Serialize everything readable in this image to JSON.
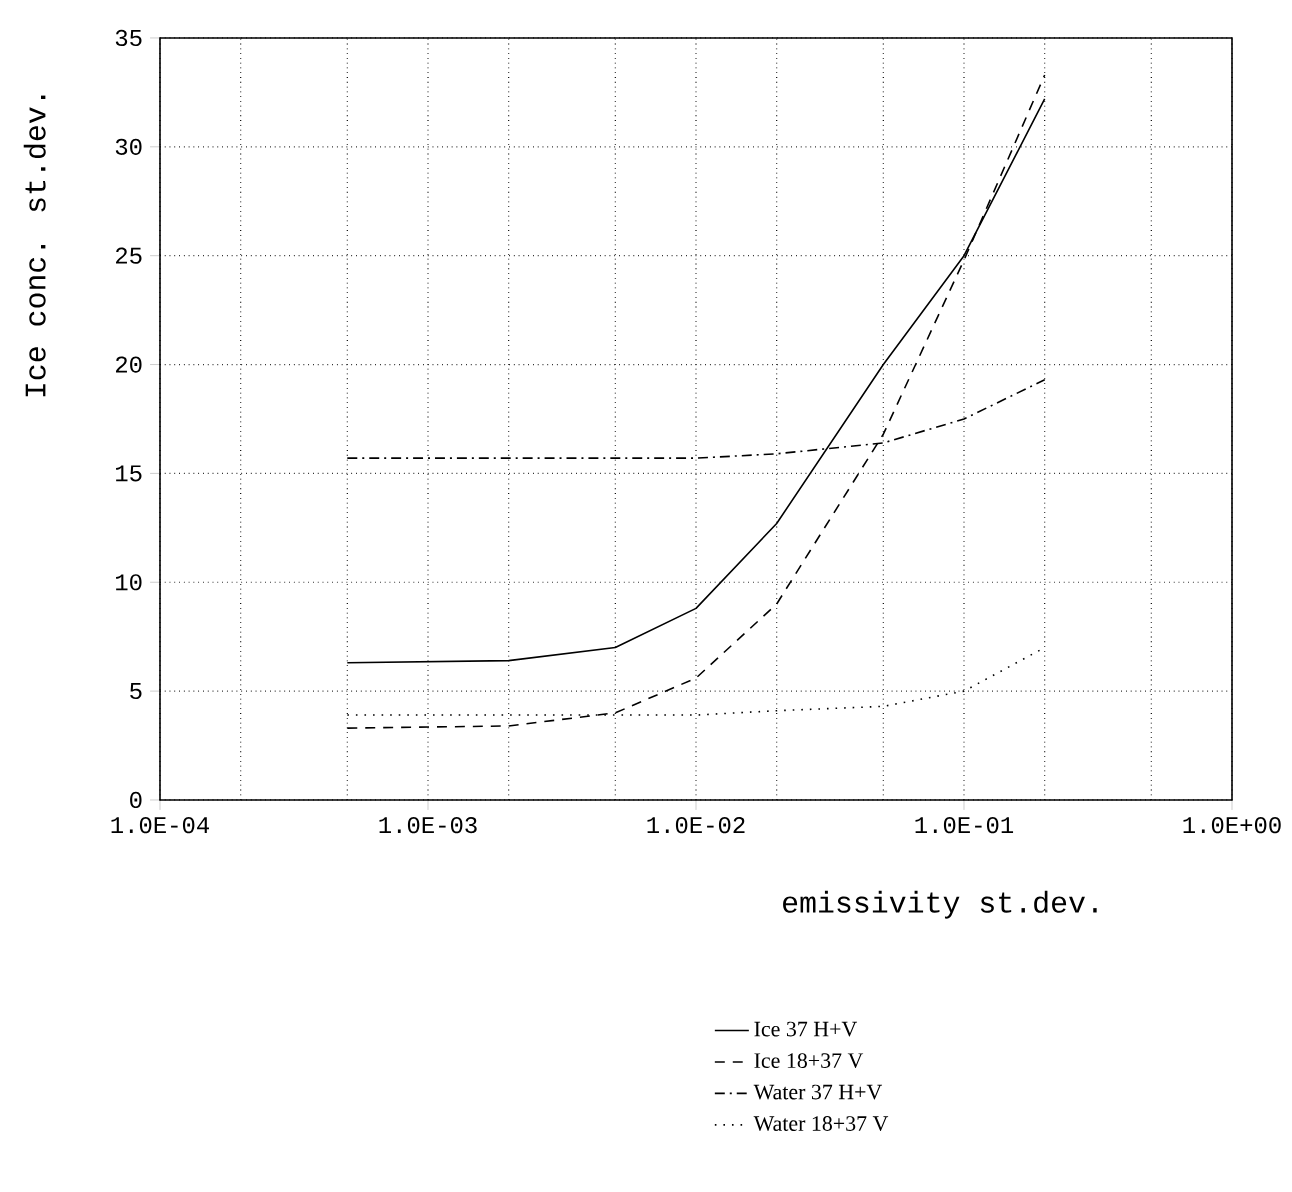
{
  "chart_data": {
    "type": "line",
    "xlabel": "emissivity st.dev.",
    "ylabel": "Ice conc. st.dev.",
    "log": "x",
    "grid": true,
    "legend": "bottom",
    "marker": "none",
    "x": [
      0.0005,
      0.002,
      0.005,
      0.01,
      0.02,
      0.05,
      0.1,
      0.2
    ],
    "xlim": [
      0.0001,
      1
    ],
    "xticks": [
      {
        "value": 0.0001,
        "label": "1.0E-04"
      },
      {
        "value": 0.001,
        "label": "1.0E-03"
      },
      {
        "value": 0.01,
        "label": "1.0E-02"
      },
      {
        "value": 0.1,
        "label": "1.0E-01"
      },
      {
        "value": 1,
        "label": "1.0E+00"
      }
    ],
    "ylim": [
      0,
      35
    ],
    "yticks": [
      0,
      5,
      10,
      15,
      20,
      25,
      30,
      35
    ],
    "series": [
      {
        "name": "Ice 37 H+V",
        "color": "#000000",
        "line_style": "solid",
        "values": [
          6.3,
          6.4,
          7.0,
          8.8,
          12.7,
          20.0,
          25.0,
          32.2
        ]
      },
      {
        "name": "Ice 18+37 V",
        "color": "#000000",
        "line_style": "dashed",
        "values": [
          3.3,
          3.4,
          4.0,
          5.6,
          9.0,
          16.8,
          24.8,
          33.3
        ]
      },
      {
        "name": "Water 37 H+V",
        "color": "#000000",
        "line_style": "dashdot",
        "values": [
          15.7,
          15.7,
          15.7,
          15.7,
          15.9,
          16.4,
          17.5,
          19.3
        ]
      },
      {
        "name": "Water 18+37 V",
        "color": "#000000",
        "line_style": "dotted",
        "values": [
          3.9,
          3.9,
          3.9,
          3.9,
          4.1,
          4.3,
          5.0,
          7.0
        ]
      }
    ]
  }
}
